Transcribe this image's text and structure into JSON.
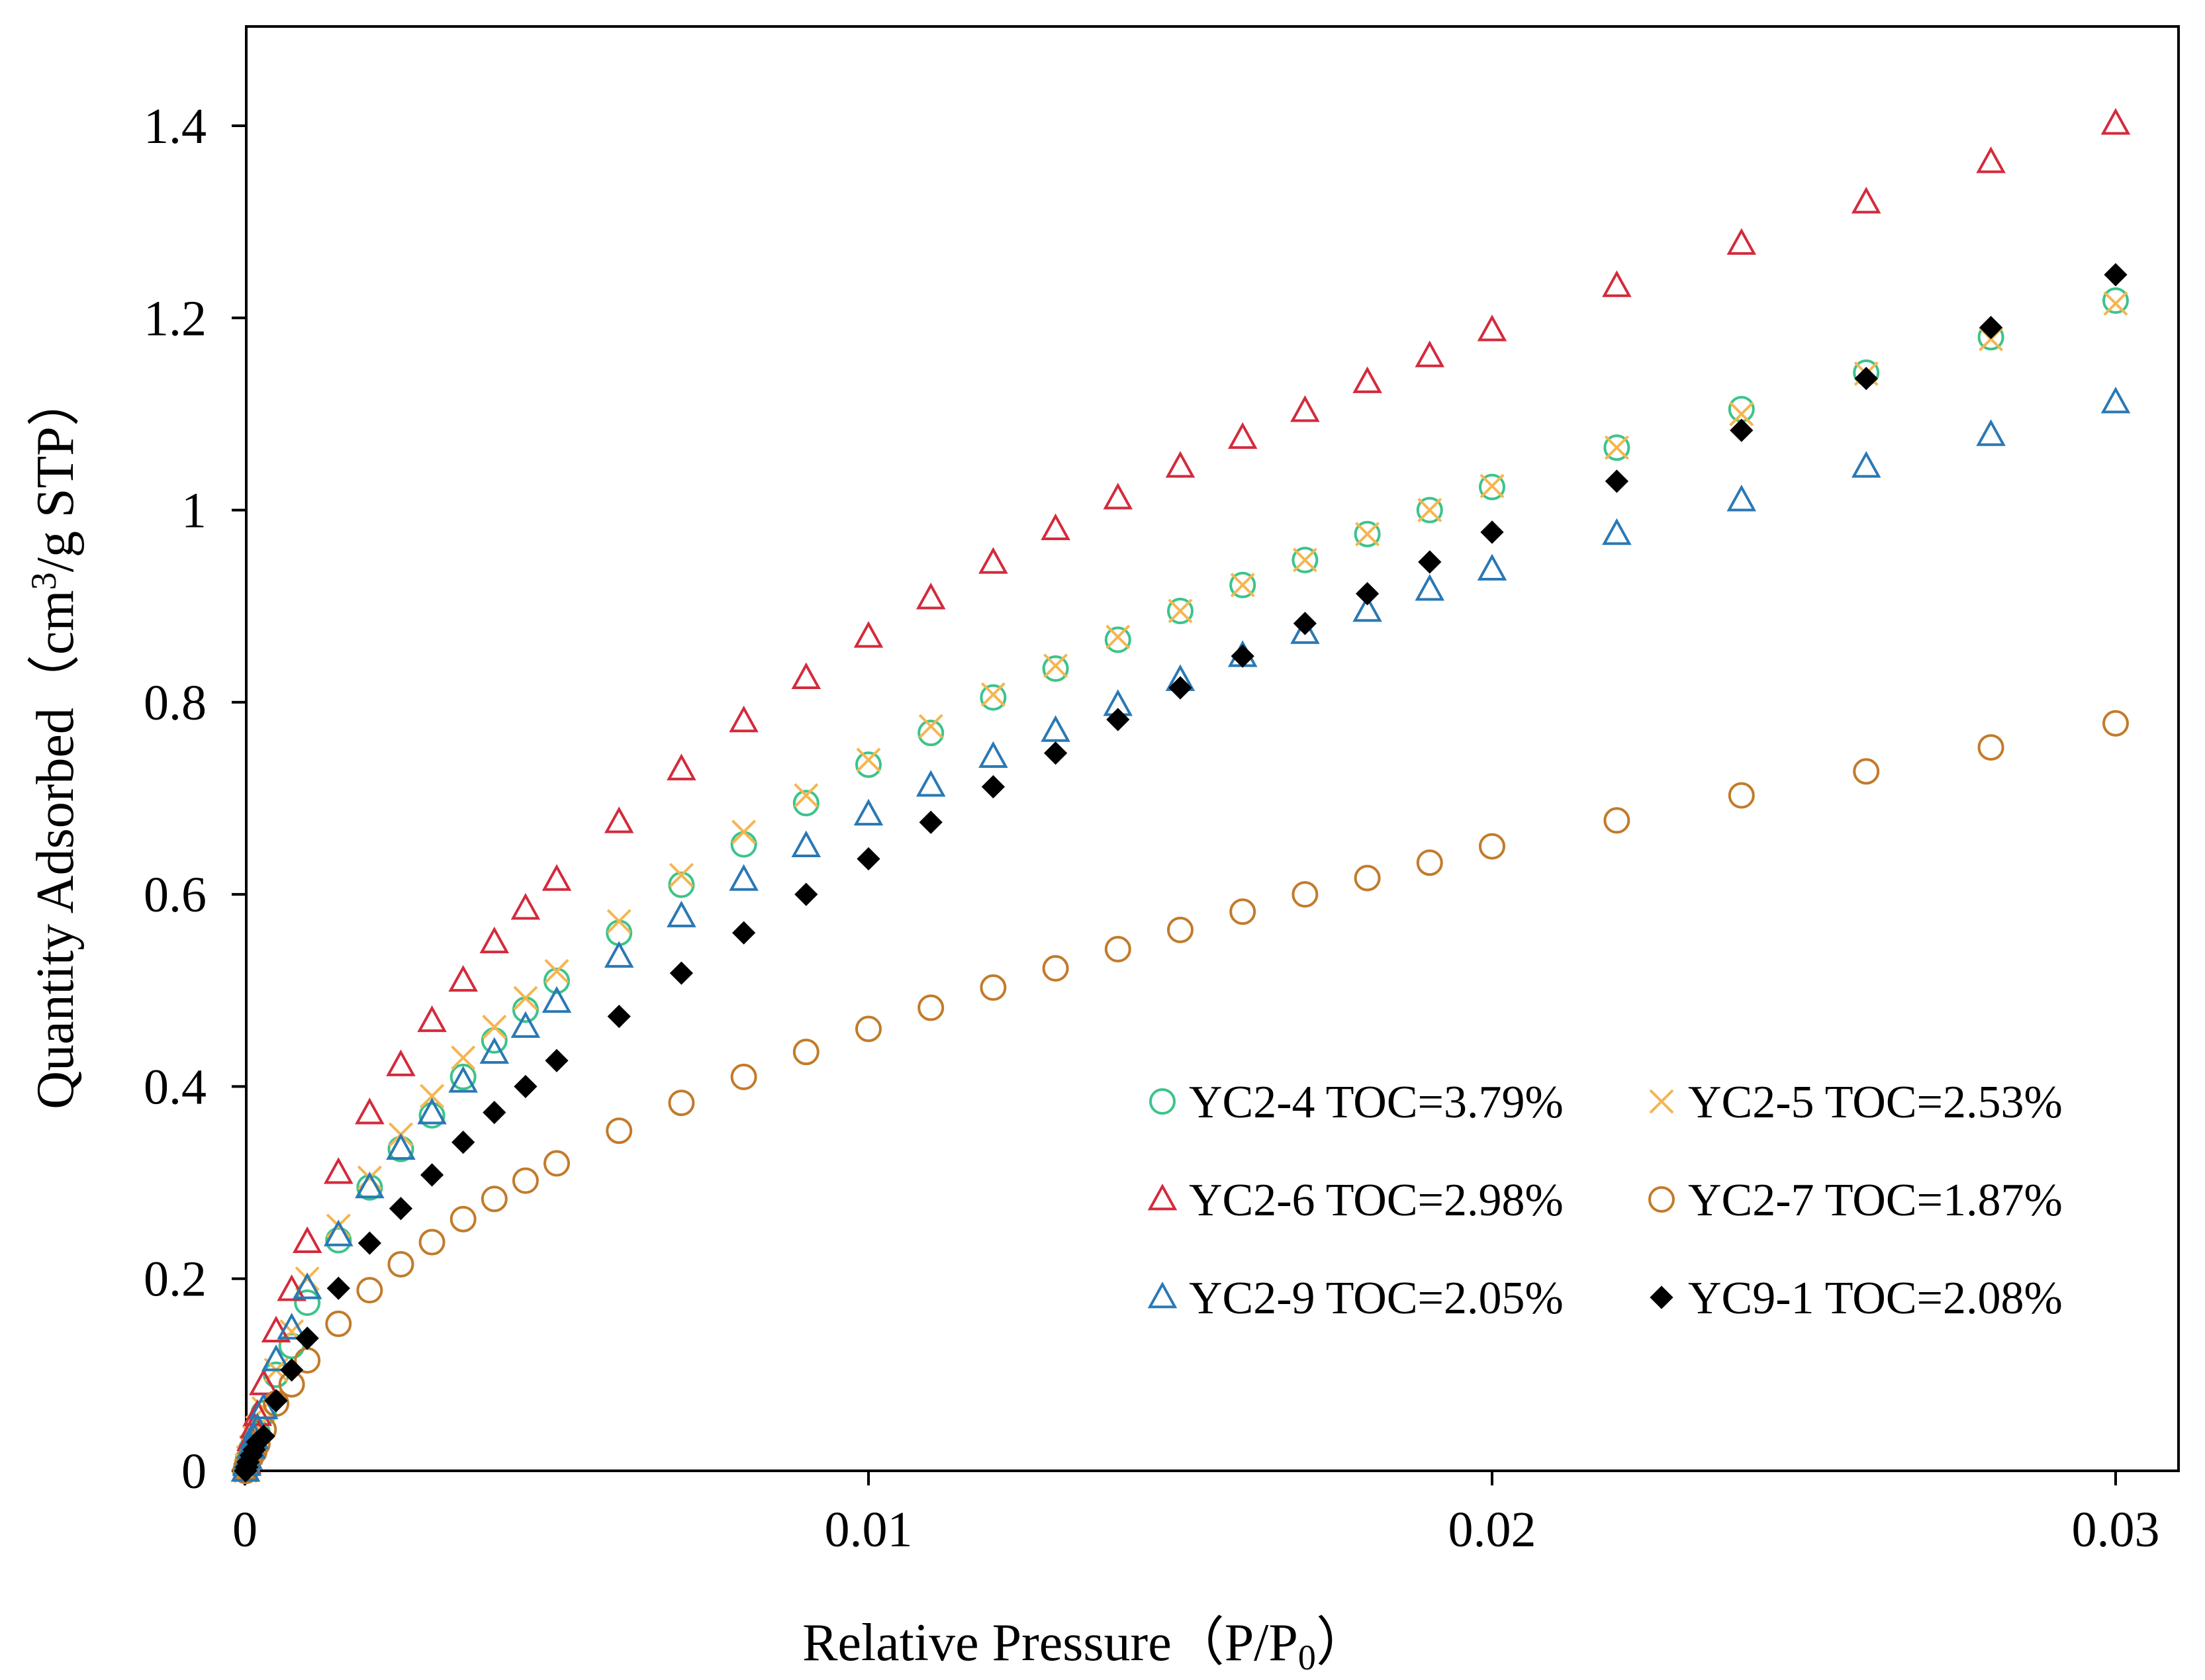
{
  "chart_data": {
    "type": "scatter",
    "title": "",
    "xlabel": "Relative Pressure（P/P",
    "xlabel_sub": "0",
    "xlabel_end": "）",
    "ylabel": "Quantity Adsorbed（cm",
    "ylabel_sup": "3",
    "ylabel_end": "/g STP）",
    "xlim": [
      0,
      0.031
    ],
    "ylim": [
      0,
      1.5
    ],
    "x_ticks": [
      0,
      0.01,
      0.02,
      0.03
    ],
    "x_tick_labels": [
      "0",
      "0.01",
      "0.02",
      "0.03"
    ],
    "y_ticks": [
      0,
      0.2,
      0.4,
      0.6,
      0.8,
      1.0,
      1.2,
      1.4
    ],
    "y_tick_labels": [
      "0",
      "0.2",
      "0.4",
      "0.6",
      "0.8",
      "1",
      "1.2",
      "1.4"
    ],
    "grid": false,
    "legend_position": "bottom-right",
    "x": [
      1e-05,
      3e-05,
      5e-05,
      0.0001,
      0.00015,
      0.0002,
      0.0003,
      0.0005,
      0.00075,
      0.001,
      0.0015,
      0.002,
      0.0025,
      0.003,
      0.0035,
      0.004,
      0.0045,
      0.005,
      0.006,
      0.007,
      0.008,
      0.009,
      0.01,
      0.011,
      0.012,
      0.013,
      0.014,
      0.015,
      0.016,
      0.017,
      0.018,
      0.019,
      0.02,
      0.022,
      0.024,
      0.026,
      0.028,
      0.03
    ],
    "series": [
      {
        "name": "YC2-4 TOC=3.79%",
        "marker": "circle",
        "color": "#3cc48a",
        "values": [
          0.0,
          0.005,
          0.012,
          0.022,
          0.032,
          0.04,
          0.06,
          0.1,
          0.13,
          0.175,
          0.24,
          0.295,
          0.335,
          0.37,
          0.41,
          0.448,
          0.48,
          0.51,
          0.56,
          0.61,
          0.652,
          0.695,
          0.735,
          0.768,
          0.805,
          0.835,
          0.865,
          0.895,
          0.922,
          0.948,
          0.975,
          1.0,
          1.024,
          1.065,
          1.105,
          1.143,
          1.18,
          1.218
        ]
      },
      {
        "name": "YC2-5 TOC=2.53%",
        "marker": "x",
        "color": "#f4b650",
        "values": [
          0.0,
          0.006,
          0.014,
          0.025,
          0.035,
          0.045,
          0.065,
          0.105,
          0.145,
          0.2,
          0.255,
          0.305,
          0.35,
          0.39,
          0.43,
          0.462,
          0.492,
          0.52,
          0.572,
          0.62,
          0.665,
          0.703,
          0.74,
          0.775,
          0.808,
          0.838,
          0.868,
          0.895,
          0.922,
          0.948,
          0.975,
          1.0,
          1.025,
          1.065,
          1.1,
          1.142,
          1.178,
          1.215
        ]
      },
      {
        "name": "YC2-6 TOC=2.98%",
        "marker": "triangle",
        "color": "#d42a3c",
        "values": [
          0.0,
          0.008,
          0.018,
          0.032,
          0.045,
          0.058,
          0.09,
          0.145,
          0.188,
          0.238,
          0.31,
          0.372,
          0.422,
          0.468,
          0.51,
          0.55,
          0.585,
          0.615,
          0.675,
          0.73,
          0.78,
          0.825,
          0.868,
          0.908,
          0.945,
          0.98,
          1.012,
          1.045,
          1.075,
          1.103,
          1.133,
          1.16,
          1.187,
          1.233,
          1.277,
          1.32,
          1.362,
          1.402
        ]
      },
      {
        "name": "YC2-7 TOC=1.87%",
        "marker": "circle",
        "color": "#c27b2a",
        "values": [
          0.0,
          0.003,
          0.008,
          0.015,
          0.02,
          0.028,
          0.043,
          0.07,
          0.09,
          0.115,
          0.153,
          0.188,
          0.215,
          0.238,
          0.262,
          0.283,
          0.302,
          0.32,
          0.354,
          0.383,
          0.41,
          0.436,
          0.46,
          0.482,
          0.503,
          0.523,
          0.543,
          0.563,
          0.582,
          0.6,
          0.617,
          0.633,
          0.65,
          0.677,
          0.703,
          0.728,
          0.753,
          0.778
        ]
      },
      {
        "name": "YC2-9 TOC=2.05%",
        "marker": "triangle",
        "color": "#2a78b4",
        "values": [
          0.0,
          0.006,
          0.013,
          0.024,
          0.034,
          0.044,
          0.065,
          0.115,
          0.148,
          0.19,
          0.245,
          0.295,
          0.335,
          0.372,
          0.405,
          0.435,
          0.462,
          0.488,
          0.535,
          0.577,
          0.615,
          0.65,
          0.683,
          0.713,
          0.743,
          0.77,
          0.797,
          0.823,
          0.848,
          0.872,
          0.895,
          0.917,
          0.938,
          0.975,
          1.01,
          1.045,
          1.078,
          1.112
        ]
      },
      {
        "name": "YC9-1 TOC=2.08%",
        "marker": "diamond",
        "color": "#000000",
        "values": [
          0.0,
          0.004,
          0.009,
          0.016,
          0.022,
          0.03,
          0.036,
          0.073,
          0.105,
          0.138,
          0.19,
          0.237,
          0.273,
          0.308,
          0.342,
          0.373,
          0.4,
          0.427,
          0.473,
          0.518,
          0.56,
          0.6,
          0.637,
          0.675,
          0.712,
          0.747,
          0.782,
          0.815,
          0.848,
          0.882,
          0.913,
          0.946,
          0.977,
          1.03,
          1.083,
          1.137,
          1.19,
          1.245
        ]
      }
    ]
  }
}
